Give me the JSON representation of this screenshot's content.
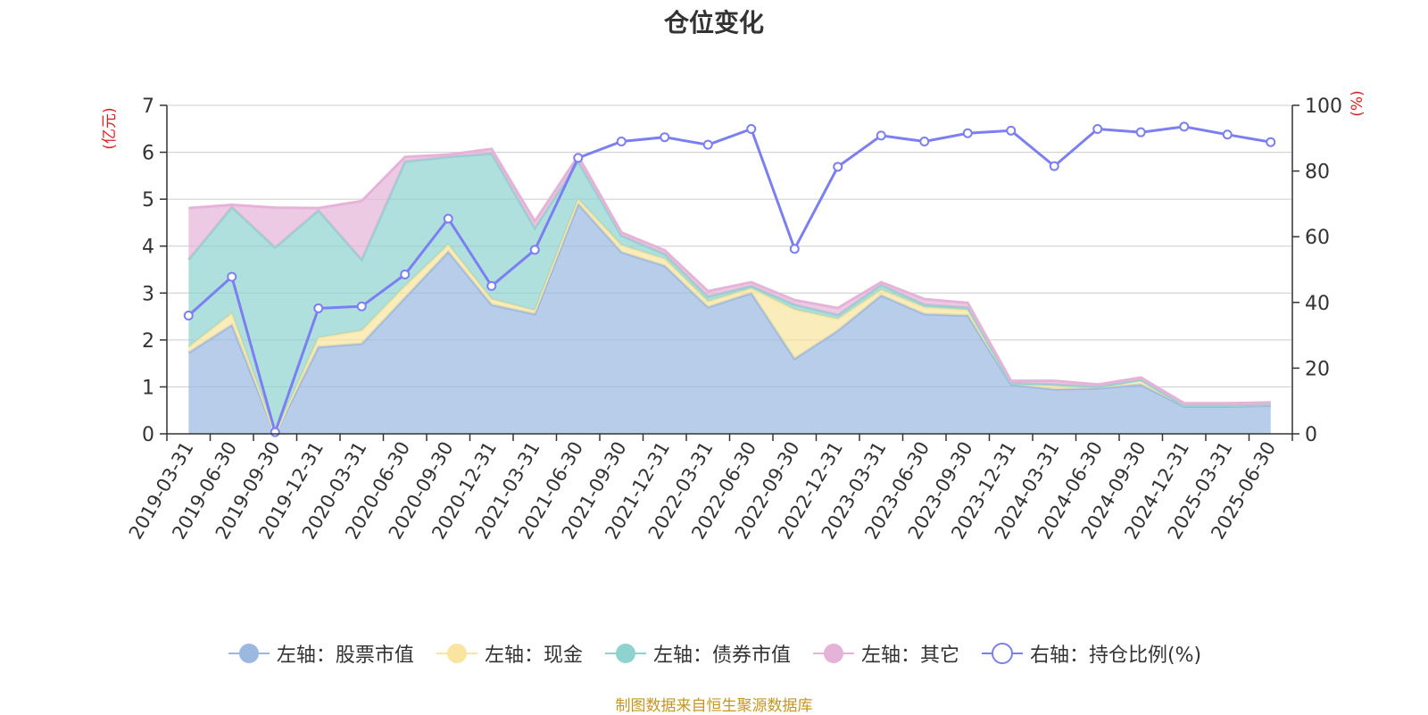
{
  "colors": {
    "stock": "#9ab8e0",
    "cash": "#f9e4a0",
    "bond": "#8fd3d0",
    "other": "#e6b3d8",
    "ratio": "#7b7ff2",
    "unit_red": "#e02020",
    "axis": "#333333",
    "grid": "#cccccc",
    "source": "#c8961e"
  },
  "source_note": "制图数据来自恒生聚源数据库",
  "chart_data": {
    "type": "area",
    "title": "仓位变化",
    "y_left_label": "(亿元)",
    "y_right_label": "(%)",
    "y_left_lim": [
      0,
      7
    ],
    "y_left_ticks": [
      0,
      1,
      2,
      3,
      4,
      5,
      6,
      7
    ],
    "y_right_lim": [
      0,
      100
    ],
    "y_right_ticks": [
      0,
      20,
      40,
      60,
      80,
      100
    ],
    "grid": true,
    "legend_position": "bottom",
    "x": [
      "2019-03-31",
      "2019-06-30",
      "2019-09-30",
      "2019-12-31",
      "2020-03-31",
      "2020-06-30",
      "2020-09-30",
      "2020-12-31",
      "2021-03-31",
      "2021-06-30",
      "2021-09-30",
      "2021-12-31",
      "2022-03-31",
      "2022-06-30",
      "2022-09-30",
      "2022-12-31",
      "2023-03-31",
      "2023-06-30",
      "2023-09-30",
      "2023-12-31",
      "2024-03-31",
      "2024-06-30",
      "2024-09-30",
      "2024-12-31",
      "2025-03-31",
      "2025-06-30"
    ],
    "series": [
      {
        "name": "左轴：股票市值",
        "axis": "left",
        "kind": "area",
        "values": [
          1.73,
          2.32,
          0.0,
          1.85,
          1.92,
          2.9,
          3.88,
          2.75,
          2.55,
          4.9,
          3.87,
          3.58,
          2.7,
          3.0,
          1.6,
          2.2,
          2.95,
          2.55,
          2.52,
          1.05,
          0.95,
          0.97,
          1.05,
          0.58,
          0.58,
          0.6
        ]
      },
      {
        "name": "左轴：现金",
        "axis": "left",
        "kind": "area",
        "values": [
          0.12,
          0.25,
          0.0,
          0.2,
          0.28,
          0.25,
          0.15,
          0.12,
          0.08,
          0.1,
          0.15,
          0.15,
          0.12,
          0.1,
          1.05,
          0.25,
          0.12,
          0.15,
          0.12,
          0.03,
          0.1,
          0.03,
          0.1,
          0.02,
          0.02,
          0.02
        ]
      },
      {
        "name": "左轴：债券市值",
        "axis": "left",
        "kind": "area",
        "values": [
          1.86,
          2.26,
          3.97,
          2.71,
          1.51,
          2.65,
          1.87,
          3.1,
          1.75,
          0.8,
          0.2,
          0.1,
          0.1,
          0.05,
          0.1,
          0.08,
          0.1,
          0.05,
          0.05,
          0.0,
          0.0,
          0.0,
          0.0,
          0.0,
          0.0,
          0.0
        ]
      },
      {
        "name": "左轴：其它",
        "axis": "left",
        "kind": "area",
        "values": [
          1.1,
          0.05,
          0.85,
          0.05,
          1.25,
          0.1,
          0.05,
          0.1,
          0.15,
          0.12,
          0.07,
          0.08,
          0.12,
          0.08,
          0.1,
          0.15,
          0.06,
          0.12,
          0.1,
          0.05,
          0.08,
          0.05,
          0.05,
          0.05,
          0.05,
          0.05
        ]
      },
      {
        "name": "右轴：持仓比例(%)",
        "axis": "right",
        "kind": "line",
        "values": [
          36,
          47.8,
          0.5,
          38.2,
          38.8,
          48.5,
          65.5,
          45,
          56,
          84,
          89,
          90.3,
          88,
          92.8,
          56.3,
          81.3,
          90.8,
          89,
          91.5,
          92.3,
          81.5,
          92.8,
          91.8,
          93.5,
          91.1,
          88.8
        ]
      }
    ]
  }
}
